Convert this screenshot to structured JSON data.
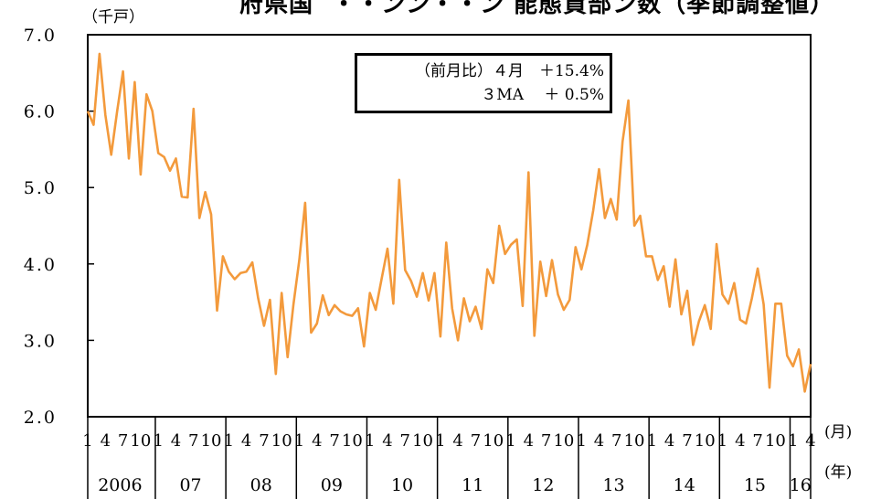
{
  "title_partial": "府県国  ・・ンン・・ン 能態貸部ン数（季節調整値）",
  "y_unit": "（千戸）",
  "x_unit_month": "(月)",
  "x_unit_year": "(年)",
  "annotation": {
    "line1_label": "（前月比）４月",
    "line1_value": "＋15.4%",
    "line2_label": "３MA",
    "line2_value": "＋ 0.5%"
  },
  "colors": {
    "line": "#f39a3c",
    "axis": "#000000"
  },
  "chart_data": {
    "type": "line",
    "title": "",
    "ylabel": "（千戸）",
    "ylim": [
      2.0,
      7.0
    ],
    "yticks": [
      "2.0",
      "3.0",
      "4.0",
      "5.0",
      "6.0",
      "7.0"
    ],
    "month_ticks": [
      "1",
      "4",
      "7",
      "10"
    ],
    "years": [
      "2006",
      "07",
      "08",
      "09",
      "10",
      "11",
      "12",
      "13",
      "14",
      "15",
      "16"
    ],
    "grid": false,
    "start": "2006-01",
    "series": [
      {
        "values": [
          6.0,
          5.82,
          6.75,
          5.95,
          5.43,
          6.0,
          6.52,
          5.38,
          6.38,
          5.17,
          6.22,
          6.0,
          5.45,
          5.4,
          5.22,
          5.38,
          4.88,
          4.87,
          6.03,
          4.6,
          4.94,
          4.65,
          3.39,
          4.1,
          3.9,
          3.8,
          3.88,
          3.9,
          4.02,
          3.55,
          3.19,
          3.53,
          2.56,
          3.62,
          2.78,
          3.47,
          4.05,
          4.8,
          3.1,
          3.22,
          3.59,
          3.33,
          3.46,
          3.38,
          3.34,
          3.32,
          3.42,
          2.92,
          3.62,
          3.4,
          3.8,
          4.2,
          3.48,
          5.1,
          3.92,
          3.78,
          3.57,
          3.88,
          3.52,
          3.88,
          3.05,
          4.28,
          3.42,
          3.0,
          3.55,
          3.25,
          3.44,
          3.15,
          3.93,
          3.75,
          4.5,
          4.13,
          4.25,
          4.32,
          3.45,
          5.2,
          3.06,
          4.03,
          3.58,
          4.05,
          3.6,
          3.4,
          3.53,
          4.22,
          3.93,
          4.25,
          4.7,
          5.24,
          4.6,
          4.85,
          4.58,
          5.6,
          6.14,
          4.5,
          4.63,
          4.1,
          4.1,
          3.79,
          3.97,
          3.44,
          4.06,
          3.34,
          3.65,
          2.94,
          3.25,
          3.46,
          3.15,
          4.26,
          3.6,
          3.48,
          3.75,
          3.27,
          3.22,
          3.55,
          3.94,
          3.47,
          2.38,
          3.48,
          3.48,
          2.8,
          2.66,
          2.88,
          2.33,
          2.69
        ]
      }
    ]
  }
}
